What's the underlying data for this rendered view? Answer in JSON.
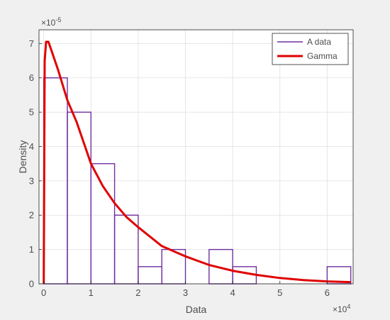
{
  "chart_data": {
    "type": "bar",
    "xlabel": "Data",
    "ylabel": "Density",
    "x_exponent": "×10",
    "x_exponent_power": "4",
    "y_exponent": "×10",
    "y_exponent_power": "-5",
    "xlim": [
      -0.1,
      6.55
    ],
    "ylim": [
      0,
      7.4
    ],
    "x_ticks": [
      0,
      1,
      2,
      3,
      4,
      5,
      6
    ],
    "x_tick_labels": [
      "0",
      "1",
      "2",
      "3",
      "4",
      "5",
      "6"
    ],
    "y_ticks": [
      0,
      1,
      2,
      3,
      4,
      5,
      6,
      7
    ],
    "y_tick_labels": [
      "0",
      "1",
      "2",
      "3",
      "4",
      "5",
      "6",
      "7"
    ],
    "grid": true,
    "legend_position": "top-right",
    "histogram": {
      "name": "A data",
      "color": "#7030a0",
      "bin_edges": [
        0,
        0.5,
        1,
        1.5,
        2,
        2.5,
        3,
        3.5,
        4,
        4.5,
        5,
        5.5,
        6,
        6.5
      ],
      "values": [
        6,
        5,
        3.5,
        2,
        0.5,
        1,
        0,
        1,
        0.5,
        0,
        0,
        0,
        0.5
      ]
    },
    "curve": {
      "name": "Gamma",
      "color": "#e00000",
      "x": [
        0,
        0.02,
        0.05,
        0.1,
        0.2,
        0.3,
        0.5,
        0.7,
        1.0,
        1.25,
        1.5,
        1.75,
        2.0,
        2.5,
        3.0,
        3.5,
        4.0,
        4.5,
        5.0,
        5.5,
        6.0,
        6.5
      ],
      "y": [
        0,
        6.5,
        7.05,
        7.05,
        6.65,
        6.25,
        5.35,
        4.7,
        3.5,
        2.85,
        2.35,
        1.95,
        1.65,
        1.1,
        0.8,
        0.55,
        0.38,
        0.26,
        0.17,
        0.11,
        0.07,
        0.05
      ]
    }
  }
}
